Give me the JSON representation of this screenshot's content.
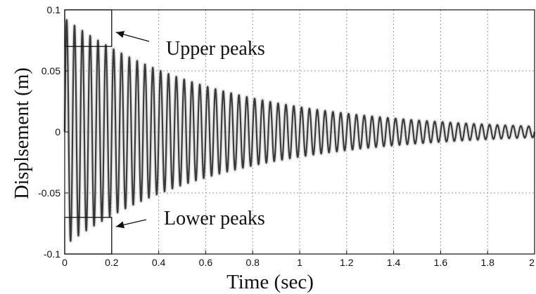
{
  "chart_data": {
    "type": "line",
    "title": "",
    "xlabel": "Time (sec)",
    "ylabel": "Displsement (m)",
    "xlim": [
      0,
      2
    ],
    "ylim": [
      -0.1,
      0.1
    ],
    "grid": true,
    "x_ticks": [
      0,
      0.2,
      0.4,
      0.6,
      0.8,
      1,
      1.2,
      1.4,
      1.6,
      1.8,
      2
    ],
    "x_tick_labels": [
      "0",
      "0.2",
      "0.4",
      "0.6",
      "0.8",
      "1",
      "1.2",
      "1.4",
      "1.6",
      "1.8",
      "2"
    ],
    "y_ticks": [
      -0.1,
      -0.05,
      0,
      0.05,
      0.1
    ],
    "y_tick_labels": [
      "-0.1",
      "-0.05",
      "0",
      "0.05",
      "0.1"
    ],
    "series": [
      {
        "description": "Free-vibration decaying sinusoid",
        "frequency_hz": 30,
        "initial_amplitude_m": 0.093,
        "amplitude_at_2s_m": 0.0045,
        "color": "#3a3a3a"
      }
    ],
    "boxes": [
      {
        "x_range": [
          0,
          0.2
        ],
        "y_range": [
          0.07,
          0.1
        ]
      },
      {
        "x_range": [
          0,
          0.2
        ],
        "y_range": [
          -0.1,
          -0.07
        ]
      }
    ],
    "annotations": [
      {
        "text": "Upper peaks",
        "target": [
          0.2,
          0.07
        ]
      },
      {
        "text": "Lower peaks",
        "target": [
          0.2,
          -0.07
        ]
      }
    ]
  }
}
